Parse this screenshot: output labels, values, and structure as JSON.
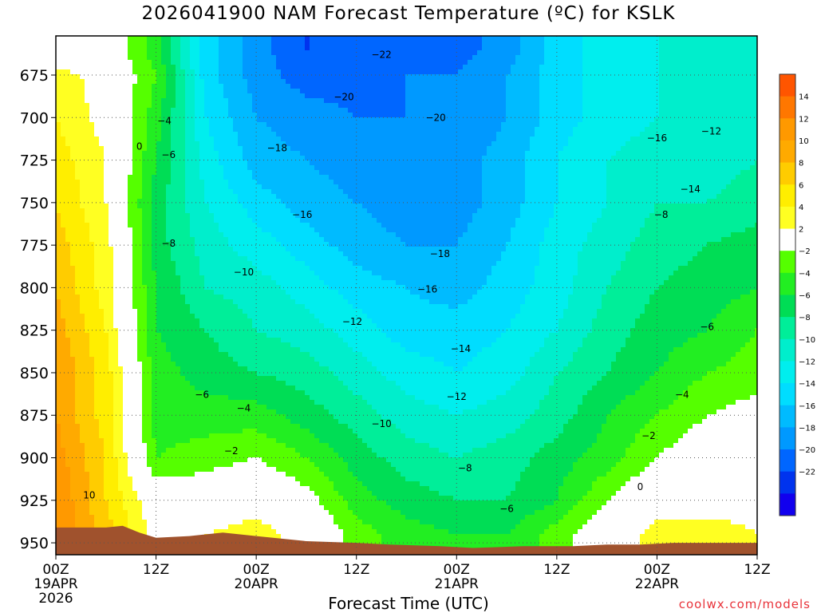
{
  "title": "2026041900 NAM Forecast Temperature (ºC) for KSLK",
  "credit": "coolwx.com/models",
  "chart_data": {
    "type": "heatmap",
    "title": "2026041900 NAM Forecast Temperature (ºC) for KSLK",
    "xlabel": "Forecast Time (UTC)",
    "ylabel": "",
    "x_ticks": [
      {
        "hour": 0,
        "lines": [
          "00Z",
          "19APR",
          "2026"
        ]
      },
      {
        "hour": 12,
        "lines": [
          "12Z"
        ]
      },
      {
        "hour": 24,
        "lines": [
          "00Z",
          "20APR"
        ]
      },
      {
        "hour": 36,
        "lines": [
          "12Z"
        ]
      },
      {
        "hour": 48,
        "lines": [
          "00Z",
          "21APR"
        ]
      },
      {
        "hour": 60,
        "lines": [
          "12Z"
        ]
      },
      {
        "hour": 72,
        "lines": [
          "00Z",
          "22APR"
        ]
      },
      {
        "hour": 84,
        "lines": [
          "12Z"
        ]
      }
    ],
    "xlim": [
      0,
      84
    ],
    "y_ticks": [
      675,
      700,
      725,
      750,
      775,
      800,
      825,
      850,
      875,
      900,
      925,
      950
    ],
    "ylim": [
      652,
      957
    ],
    "y_reversed": true,
    "grid": true,
    "terrain_color": "#a0522d",
    "colorbar": {
      "labels": [
        "14",
        "12",
        "10",
        "8",
        "6",
        "4",
        "2",
        "−2",
        "−4",
        "−6",
        "−8",
        "−10",
        "−12",
        "−14",
        "−16",
        "−18",
        "−20",
        "−22"
      ],
      "colors": [
        "#ff5500",
        "#ff7700",
        "#ff9900",
        "#ffaa00",
        "#ffcc00",
        "#ffee00",
        "#ffff22",
        "#ffffff",
        "#55ff00",
        "#22ee22",
        "#00dd55",
        "#00ee99",
        "#00eecc",
        "#00eeee",
        "#00ddff",
        "#00bbff",
        "#0099ff",
        "#0066ff",
        "#0033ee",
        "#1100ee"
      ]
    },
    "hours": [
      0,
      6,
      12,
      18,
      24,
      30,
      36,
      42,
      48,
      54,
      60,
      66,
      72,
      78,
      84
    ],
    "levels": [
      660,
      675,
      700,
      725,
      750,
      775,
      800,
      825,
      850,
      875,
      900,
      925,
      945
    ],
    "temperatures": [
      [
        -2,
        0,
        -5,
        -15,
        -19,
        -22,
        -22,
        -21,
        -21,
        -19,
        -15,
        -13,
        -12,
        -12,
        -12
      ],
      [
        3,
        1,
        -4,
        -15,
        -19,
        -21,
        -21,
        -20,
        -20,
        -18,
        -15,
        -13,
        -12,
        -12,
        -12
      ],
      [
        4,
        1,
        -5,
        -14,
        -18,
        -19,
        -20,
        -20,
        -20,
        -18,
        -15,
        -13,
        -12,
        -12,
        -11
      ],
      [
        5,
        2,
        -6,
        -13,
        -17,
        -18,
        -19,
        -19,
        -19,
        -17,
        -14,
        -12,
        -11,
        -11,
        -10
      ],
      [
        6,
        2,
        -7,
        -12,
        -15,
        -17,
        -18,
        -19,
        -19,
        -17,
        -14,
        -12,
        -10,
        -10,
        -9
      ],
      [
        7,
        3,
        -7,
        -11,
        -13,
        -15,
        -17,
        -18,
        -18,
        -16,
        -13,
        -11,
        -9,
        -8,
        -7
      ],
      [
        8,
        3,
        -6,
        -10,
        -11,
        -13,
        -15,
        -16,
        -17,
        -15,
        -13,
        -10,
        -8,
        -7,
        -6
      ],
      [
        9,
        4,
        -6,
        -8,
        -10,
        -11,
        -13,
        -15,
        -15,
        -14,
        -12,
        -9,
        -7,
        -6,
        -4
      ],
      [
        10,
        5,
        -5,
        -7,
        -8,
        -9,
        -11,
        -13,
        -14,
        -13,
        -10,
        -8,
        -6,
        -4,
        -3
      ],
      [
        10,
        5,
        -5,
        -5,
        -5,
        -7,
        -9,
        -11,
        -12,
        -11,
        -9,
        -6,
        -4,
        -2,
        -1
      ],
      [
        11,
        6,
        -4,
        -3,
        -2,
        -4,
        -7,
        -9,
        -10,
        -9,
        -7,
        -5,
        -2,
        0,
        0
      ],
      [
        12,
        6,
        0,
        0,
        1,
        -1,
        -5,
        -7,
        -8,
        -8,
        -6,
        -2,
        1,
        1,
        1
      ],
      [
        12,
        7,
        1,
        2,
        3,
        1,
        -3,
        -5,
        -6,
        -6,
        -3,
        0,
        3,
        3,
        2
      ]
    ],
    "terrain_top": [
      [
        0,
        941
      ],
      [
        6,
        941
      ],
      [
        8,
        940
      ],
      [
        10,
        944
      ],
      [
        12,
        947
      ],
      [
        16,
        946
      ],
      [
        20,
        944
      ],
      [
        24,
        946
      ],
      [
        30,
        949
      ],
      [
        36,
        950
      ],
      [
        40,
        951
      ],
      [
        46,
        952
      ],
      [
        50,
        953
      ],
      [
        56,
        952
      ],
      [
        62,
        952
      ],
      [
        66,
        951
      ],
      [
        70,
        951
      ],
      [
        74,
        950
      ],
      [
        78,
        950
      ],
      [
        84,
        950
      ]
    ],
    "contour_labels": [
      {
        "hour": 39.0,
        "level": 663,
        "text": "−22"
      },
      {
        "hour": 34.5,
        "level": 688,
        "text": "−20"
      },
      {
        "hour": 45.5,
        "level": 700,
        "text": "−20"
      },
      {
        "hour": 26.5,
        "level": 718,
        "text": "−18"
      },
      {
        "hour": 29.5,
        "level": 757,
        "text": "−16"
      },
      {
        "hour": 46.0,
        "level": 780,
        "text": "−18"
      },
      {
        "hour": 44.5,
        "level": 801,
        "text": "−16"
      },
      {
        "hour": 35.5,
        "level": 820,
        "text": "−12"
      },
      {
        "hour": 48.5,
        "level": 836,
        "text": "−14"
      },
      {
        "hour": 48.0,
        "level": 864,
        "text": "−12"
      },
      {
        "hour": 39.0,
        "level": 880,
        "text": "−10"
      },
      {
        "hour": 22.5,
        "level": 791,
        "text": "−10"
      },
      {
        "hour": 49.0,
        "level": 906,
        "text": "−8"
      },
      {
        "hour": 54.0,
        "level": 930,
        "text": "−6"
      },
      {
        "hour": 17.5,
        "level": 863,
        "text": "−6"
      },
      {
        "hour": 22.5,
        "level": 871,
        "text": "−4"
      },
      {
        "hour": 21.0,
        "level": 896,
        "text": "−2"
      },
      {
        "hour": 72.0,
        "level": 712,
        "text": "−16"
      },
      {
        "hour": 72.5,
        "level": 757,
        "text": "−8"
      },
      {
        "hour": 76.0,
        "level": 742,
        "text": "−14"
      },
      {
        "hour": 78.0,
        "level": 823,
        "text": "−6"
      },
      {
        "hour": 75.0,
        "level": 863,
        "text": "−4"
      },
      {
        "hour": 71.0,
        "level": 887,
        "text": "−2"
      },
      {
        "hour": 70.0,
        "level": 917,
        "text": "0"
      },
      {
        "hour": 10.0,
        "level": 717,
        "text": "0"
      },
      {
        "hour": 13.0,
        "level": 702,
        "text": "−4"
      },
      {
        "hour": 13.5,
        "level": 722,
        "text": "−6"
      },
      {
        "hour": 13.5,
        "level": 774,
        "text": "−8"
      },
      {
        "hour": 4.0,
        "level": 922,
        "text": "10"
      },
      {
        "hour": 78.5,
        "level": 708,
        "text": "−12"
      }
    ]
  }
}
